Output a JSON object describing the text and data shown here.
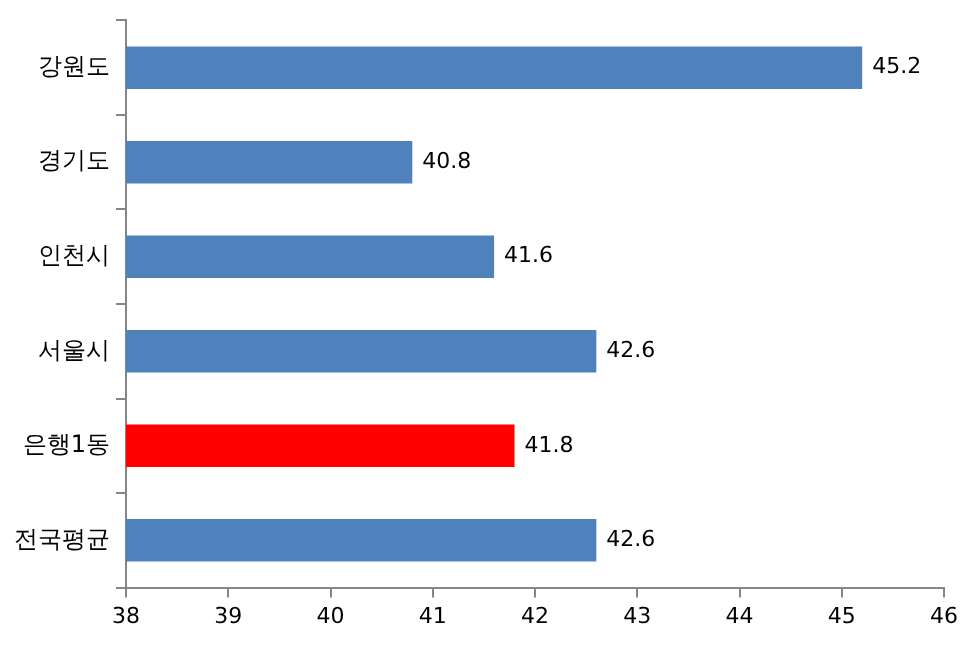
{
  "chart_data": {
    "type": "bar",
    "orientation": "horizontal",
    "categories": [
      "강원도",
      "경기도",
      "인천시",
      "서울시",
      "은행1동",
      "전국평균"
    ],
    "values": [
      45.2,
      40.8,
      41.6,
      42.6,
      41.8,
      42.6
    ],
    "colors": [
      "#4f81bd",
      "#4f81bd",
      "#4f81bd",
      "#4f81bd",
      "#ff0000",
      "#4f81bd"
    ],
    "xlim": [
      38,
      46
    ],
    "xticks": [
      38,
      39,
      40,
      41,
      42,
      43,
      44,
      45,
      46
    ],
    "grid": false,
    "legend": false,
    "data_labels": true
  }
}
